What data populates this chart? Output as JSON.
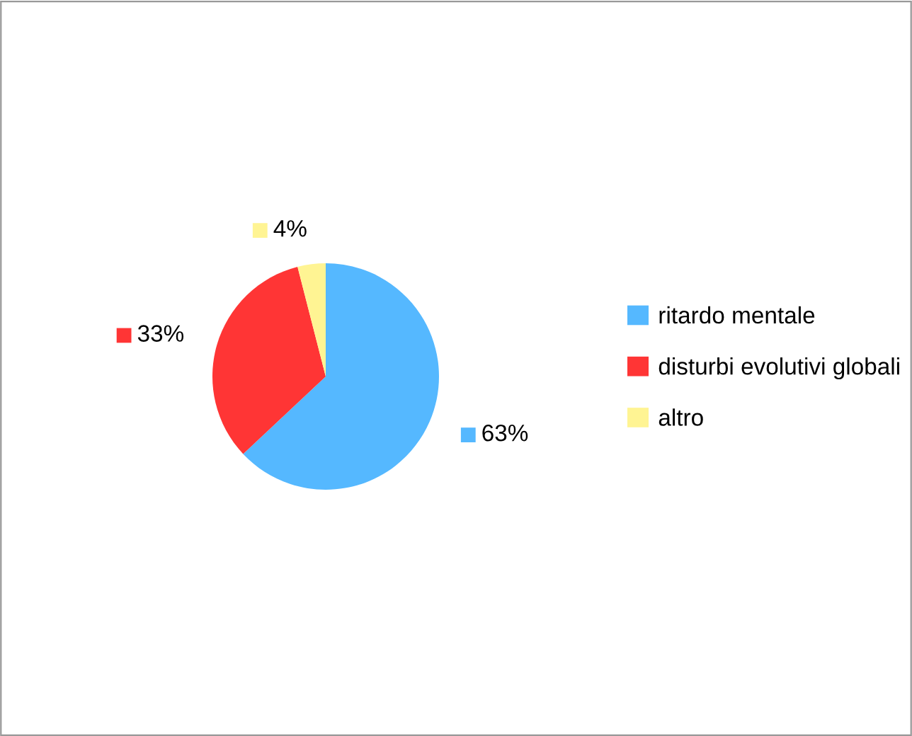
{
  "chart_data": {
    "type": "pie",
    "categories": [
      "ritardo mentale",
      "disturbi evolutivi globali",
      "altro"
    ],
    "values": [
      63,
      33,
      4
    ],
    "colors": [
      "#55b8ff",
      "#ff3535",
      "#fff493"
    ],
    "value_labels": [
      "63%",
      "33%",
      "4%"
    ],
    "legend": "right"
  }
}
